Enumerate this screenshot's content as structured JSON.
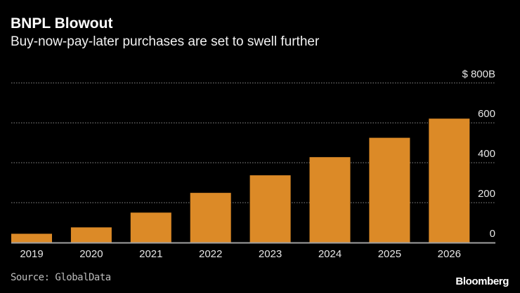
{
  "header": {
    "title": "BNPL Blowout",
    "subtitle": "Buy-now-pay-later purchases are set to swell further"
  },
  "footer": {
    "source": "Source: GlobalData",
    "logo": "Bloomberg"
  },
  "colors": {
    "bar": "#dc8a27",
    "background": "#000000",
    "grid": "#8c8c8c"
  },
  "chart_data": {
    "type": "bar",
    "categories": [
      "2019",
      "2020",
      "2021",
      "2022",
      "2023",
      "2024",
      "2025",
      "2026"
    ],
    "values": [
      44,
      76,
      150,
      249,
      337,
      428,
      525,
      621
    ],
    "ylim": [
      0,
      800
    ],
    "yticks": [
      0,
      200,
      400,
      600,
      800
    ],
    "ytick_labels": [
      "0",
      "200",
      "400",
      "600",
      "$ 800B"
    ],
    "unit": "$B",
    "grid": true,
    "yaxis_side": "right"
  }
}
